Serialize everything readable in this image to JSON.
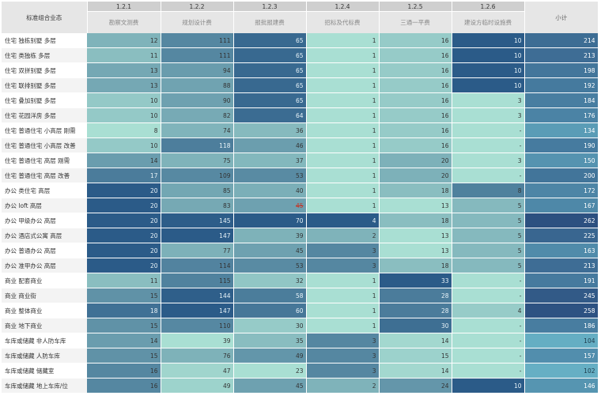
{
  "table": {
    "corner_label": "标准组合业态",
    "codes": [
      "1.2.1",
      "1.2.2",
      "1.2.3",
      "1.2.4",
      "1.2.5",
      "1.2.6"
    ],
    "column_names": [
      "勘察文测费",
      "规划设计费",
      "报批报建费",
      "招标及代标费",
      "三通一平费",
      "建设方临时设施费"
    ],
    "total_label": "小计",
    "dash": "-",
    "colors": {
      "low": "#a9dfd3",
      "high": "#2b5b88",
      "header_code_bg": "#cfcfcf",
      "header_bg": "#e6e6e6",
      "strike": "#c0392b"
    },
    "rows": [
      {
        "label": "住宅 独栋别墅 多层",
        "values": [
          "12",
          "111",
          "65",
          "1",
          "16",
          "10"
        ],
        "total": "214"
      },
      {
        "label": "住宅 类独栋 多层",
        "values": [
          "11",
          "111",
          "65",
          "1",
          "16",
          "10"
        ],
        "total": "213"
      },
      {
        "label": "住宅 双拼别墅 多层",
        "values": [
          "13",
          "94",
          "65",
          "1",
          "16",
          "10"
        ],
        "total": "198"
      },
      {
        "label": "住宅 联排别墅 多层",
        "values": [
          "13",
          "88",
          "65",
          "1",
          "16",
          "10"
        ],
        "total": "192"
      },
      {
        "label": "住宅 叠加别墅 多层",
        "values": [
          "10",
          "90",
          "65",
          "1",
          "16",
          "3"
        ],
        "total": "184"
      },
      {
        "label": "住宅 花园洋房 多层",
        "values": [
          "10",
          "82",
          "64",
          "1",
          "16",
          "3"
        ],
        "total": "176"
      },
      {
        "label": "住宅 普通住宅 小高层 刚需",
        "values": [
          "8",
          "74",
          "36",
          "1",
          "16",
          "-"
        ],
        "total": "134"
      },
      {
        "label": "住宅 普通住宅 小高层 改善",
        "values": [
          "10",
          "118",
          "46",
          "1",
          "16",
          "-"
        ],
        "total": "190"
      },
      {
        "label": "住宅 普通住宅 高层 刚需",
        "values": [
          "14",
          "75",
          "37",
          "1",
          "20",
          "3"
        ],
        "total": "150"
      },
      {
        "label": "住宅 普通住宅 高层 改善",
        "values": [
          "17",
          "109",
          "53",
          "1",
          "20",
          "-"
        ],
        "total": "200"
      },
      {
        "label": "办公 类住宅 高层",
        "values": [
          "20",
          "85",
          "40",
          "1",
          "18",
          "8"
        ],
        "total": "172"
      },
      {
        "label": "办公 loft 高层",
        "values": [
          "20",
          "83",
          "45",
          "1",
          "13",
          "5"
        ],
        "total": "167"
      },
      {
        "label": "办公 甲级办公 高层",
        "values": [
          "20",
          "145",
          "70",
          "4",
          "18",
          "5"
        ],
        "total": "262"
      },
      {
        "label": "办公 酒店式公寓 高层",
        "values": [
          "20",
          "147",
          "39",
          "2",
          "13",
          "5"
        ],
        "total": "225"
      },
      {
        "label": "办公 普通办公 高层",
        "values": [
          "20",
          "77",
          "45",
          "3",
          "13",
          "5"
        ],
        "total": "163"
      },
      {
        "label": "办公 准甲办公 高层",
        "values": [
          "20",
          "114",
          "53",
          "3",
          "18",
          "5"
        ],
        "total": "213"
      },
      {
        "label": "商业 配套商业",
        "values": [
          "11",
          "115",
          "32",
          "1",
          "33",
          "-"
        ],
        "total": "191"
      },
      {
        "label": "商业 商业街",
        "values": [
          "15",
          "144",
          "58",
          "1",
          "28",
          "-"
        ],
        "total": "245"
      },
      {
        "label": "商业 整体商业",
        "values": [
          "18",
          "147",
          "60",
          "1",
          "28",
          "4"
        ],
        "total": "258"
      },
      {
        "label": "商业 地下商业",
        "values": [
          "15",
          "110",
          "30",
          "1",
          "30",
          "-"
        ],
        "total": "186"
      },
      {
        "label": "车库或储藏 非人防车库",
        "values": [
          "14",
          "39",
          "35",
          "3",
          "14",
          "-"
        ],
        "total": "104"
      },
      {
        "label": "车库或储藏 人防车库",
        "values": [
          "15",
          "76",
          "49",
          "3",
          "15",
          "-"
        ],
        "total": "157"
      },
      {
        "label": "车库或储藏 储藏室",
        "values": [
          "16",
          "47",
          "23",
          "3",
          "14",
          "-"
        ],
        "total": "102"
      },
      {
        "label": "车库或储藏 地上车库/位",
        "values": [
          "16",
          "49",
          "45",
          "2",
          "24",
          "10"
        ],
        "total": "146"
      }
    ]
  }
}
